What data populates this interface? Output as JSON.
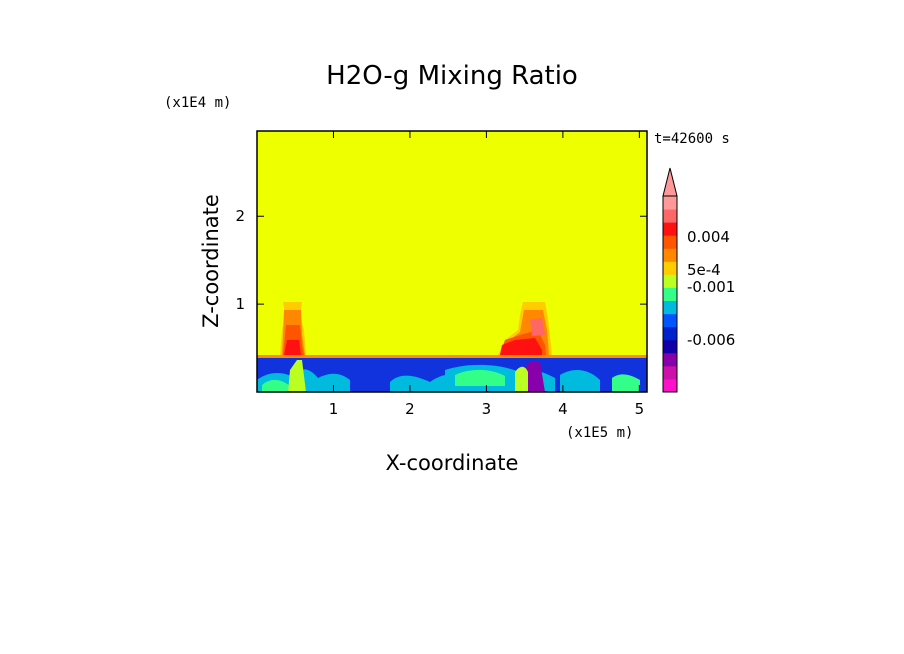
{
  "chart_data": {
    "type": "heatmap",
    "title": "H2O-g Mixing Ratio",
    "xlabel": "X-coordinate",
    "ylabel": "Z-coordinate",
    "x_scale_label": "(x1E5 m)",
    "y_scale_label": "(x1E4 m)",
    "time_label": "t=42600 s",
    "xlim": [
      0.0,
      5.1
    ],
    "ylim": [
      0.0,
      2.97
    ],
    "x_ticks": [
      1,
      2,
      3,
      4,
      5
    ],
    "y_ticks": [
      1,
      2
    ],
    "background_value_color": "#eeff00",
    "colorbar": {
      "colors": [
        "#ff11cc",
        "#cc11aa",
        "#8800aa",
        "#1100aa",
        "#0022cc",
        "#0055ff",
        "#00bbdd",
        "#33ff88",
        "#bbff22",
        "#ffcc00",
        "#ff8800",
        "#ff5500",
        "#ff1111",
        "#ff6666",
        "#ff9999"
      ],
      "labels": [
        "0.004",
        "5e-4",
        "-0.001",
        "-0.006"
      ]
    },
    "regions": [
      {
        "feature": "blue boundary layer",
        "x_range": [
          0.0,
          5.1
        ],
        "z_range": [
          0.0,
          0.4
        ],
        "color": "#1133dd"
      },
      {
        "feature": "moist plume 1",
        "x_range": [
          0.35,
          0.62
        ],
        "z_range": [
          0.4,
          1.03
        ],
        "color": "#ff5500"
      },
      {
        "feature": "moist plume 2",
        "x_range": [
          3.25,
          3.8
        ],
        "z_range": [
          0.4,
          1.03
        ],
        "color": "#ff5500"
      }
    ]
  }
}
